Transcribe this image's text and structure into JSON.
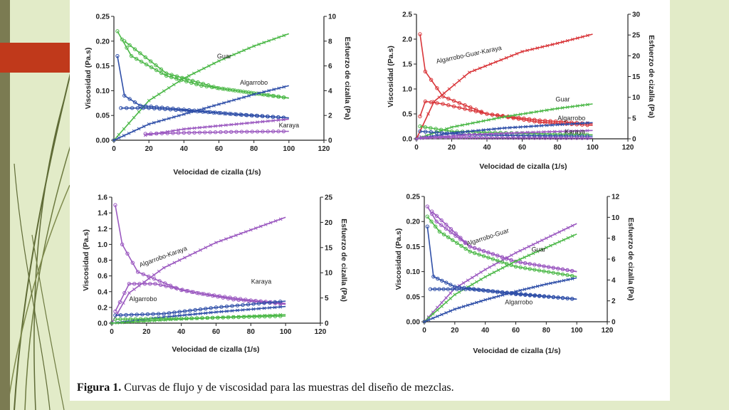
{
  "caption": {
    "label": "Figura 1.",
    "text": "Curvas de flujo y de viscosidad para las muestras del diseño de mezclas."
  },
  "colors": {
    "red": "#d9363a",
    "green": "#4cb848",
    "blue": "#2f4fa8",
    "purple": "#9b59c0",
    "accent": "#c0391b",
    "background": "#e2ebc8"
  },
  "chart_data": [
    {
      "type": "line",
      "xlabel": "Velocidad de cizalla (1/s)",
      "ylabel": "Viscosidad (Pa.s)",
      "y2label": "Esfuerzo de cizalla (Pa)",
      "xlim": [
        0,
        120
      ],
      "ylim": [
        0,
        0.25
      ],
      "y2lim": [
        0,
        10
      ],
      "xticks": [
        "0",
        "20",
        "40",
        "60",
        "80",
        "100",
        "120"
      ],
      "yticks": [
        "0.00",
        "0.05",
        "0.10",
        "0.15",
        "0.20",
        "0.25"
      ],
      "y2ticks": [
        "0",
        "2",
        "4",
        "6",
        "8",
        "10"
      ],
      "series": [
        {
          "name": "Guar",
          "color": "green",
          "viscosity_up": [
            [
              2,
              0.22
            ],
            [
              10,
              0.17
            ],
            [
              30,
              0.13
            ],
            [
              50,
              0.11
            ],
            [
              80,
              0.095
            ],
            [
              100,
              0.085
            ]
          ],
          "viscosity_down": [
            [
              6,
              0.2
            ],
            [
              30,
              0.135
            ],
            [
              60,
              0.105
            ],
            [
              100,
              0.085
            ]
          ],
          "stress": [
            [
              0,
              0
            ],
            [
              20,
              3.2
            ],
            [
              40,
              5.0
            ],
            [
              60,
              6.4
            ],
            [
              80,
              7.6
            ],
            [
              100,
              8.6
            ]
          ]
        },
        {
          "name": "Algarrobo",
          "color": "blue",
          "viscosity_up": [
            [
              2,
              0.17
            ],
            [
              6,
              0.09
            ],
            [
              15,
              0.07
            ],
            [
              40,
              0.062
            ],
            [
              70,
              0.052
            ],
            [
              100,
              0.045
            ]
          ],
          "viscosity_down": [
            [
              4,
              0.065
            ],
            [
              20,
              0.065
            ],
            [
              60,
              0.055
            ],
            [
              100,
              0.045
            ]
          ],
          "stress": [
            [
              0,
              0
            ],
            [
              20,
              1.3
            ],
            [
              40,
              2.1
            ],
            [
              60,
              2.9
            ],
            [
              80,
              3.7
            ],
            [
              100,
              4.4
            ]
          ]
        },
        {
          "name": "Karaya",
          "color": "purple",
          "viscosity_up": [
            [
              18,
              0.013
            ],
            [
              40,
              0.015
            ],
            [
              70,
              0.017
            ],
            [
              100,
              0.018
            ]
          ],
          "viscosity_down": [],
          "stress": [
            [
              18,
              0.4
            ],
            [
              40,
              0.9
            ],
            [
              70,
              1.3
            ],
            [
              100,
              1.7
            ]
          ]
        }
      ]
    },
    {
      "type": "line",
      "xlabel": "Velocidad de cizalla (1/s)",
      "ylabel": "Viscosidad (Pa.s)",
      "y2label": "Esfuerzo de cizalla (Pa)",
      "xlim": [
        0,
        120
      ],
      "ylim": [
        0,
        2.5
      ],
      "y2lim": [
        0,
        30
      ],
      "xticks": [
        "0",
        "20",
        "40",
        "60",
        "80",
        "100",
        "120"
      ],
      "yticks": [
        "0.0",
        "0.5",
        "1.0",
        "1.5",
        "2.0",
        "2.5"
      ],
      "y2ticks": [
        "0",
        "5",
        "10",
        "15",
        "20",
        "25",
        "30"
      ],
      "series": [
        {
          "name": "Algarrobo-Guar-Karaya",
          "color": "red",
          "viscosity_up": [
            [
              2,
              2.1
            ],
            [
              5,
              1.35
            ],
            [
              15,
              0.85
            ],
            [
              40,
              0.5
            ],
            [
              70,
              0.33
            ],
            [
              100,
              0.27
            ]
          ],
          "viscosity_down": [
            [
              2,
              0.45
            ],
            [
              5,
              0.75
            ],
            [
              15,
              0.7
            ],
            [
              40,
              0.5
            ],
            [
              70,
              0.37
            ],
            [
              100,
              0.3
            ]
          ],
          "stress": [
            [
              0,
              0
            ],
            [
              10,
              9
            ],
            [
              30,
              16
            ],
            [
              60,
              21
            ],
            [
              80,
              23
            ],
            [
              100,
              25.2
            ]
          ]
        },
        {
          "name": "Guar",
          "color": "green",
          "viscosity_up": [
            [
              2,
              0.25
            ],
            [
              20,
              0.15
            ],
            [
              60,
              0.11
            ],
            [
              100,
              0.08
            ]
          ],
          "viscosity_down": [],
          "stress": [
            [
              0,
              0
            ],
            [
              20,
              2.8
            ],
            [
              50,
              5.3
            ],
            [
              80,
              7.3
            ],
            [
              100,
              8.4
            ]
          ]
        },
        {
          "name": "Algarrobo",
          "color": "blue",
          "viscosity_up": [
            [
              2,
              0.15
            ],
            [
              30,
              0.08
            ],
            [
              70,
              0.06
            ],
            [
              100,
              0.05
            ]
          ],
          "viscosity_down": [],
          "stress": [
            [
              0,
              0
            ],
            [
              20,
              1.4
            ],
            [
              50,
              2.6
            ],
            [
              80,
              3.4
            ],
            [
              100,
              3.9
            ]
          ]
        },
        {
          "name": "Karaya",
          "color": "purple",
          "viscosity_up": [
            [
              2,
              0.03
            ],
            [
              40,
              0.02
            ],
            [
              100,
              0.015
            ]
          ],
          "viscosity_down": [],
          "stress": [
            [
              0,
              0
            ],
            [
              30,
              1.0
            ],
            [
              60,
              1.5
            ],
            [
              100,
              2.0
            ]
          ]
        }
      ]
    },
    {
      "type": "line",
      "xlabel": "Velocidad de cizalla (1/s)",
      "ylabel": "Viscosidad (Pa.s)",
      "y2label": "Esfuerzo de cizalla (Pa)",
      "xlim": [
        0,
        120
      ],
      "ylim": [
        0,
        1.6
      ],
      "y2lim": [
        0,
        25
      ],
      "xticks": [
        "0",
        "20",
        "40",
        "60",
        "80",
        "100",
        "120"
      ],
      "yticks": [
        "0.0",
        "0.2",
        "0.4",
        "0.6",
        "0.8",
        "1.0",
        "1.2",
        "1.4",
        "1.6"
      ],
      "y2ticks": [
        "0",
        "5",
        "10",
        "15",
        "20",
        "25"
      ],
      "series": [
        {
          "name": "Algarrobo-Karaya",
          "color": "purple",
          "viscosity_up": [
            [
              2,
              1.5
            ],
            [
              6,
              1.0
            ],
            [
              15,
              0.65
            ],
            [
              40,
              0.42
            ],
            [
              70,
              0.3
            ],
            [
              100,
              0.24
            ]
          ],
          "viscosity_down": [
            [
              2,
              0.15
            ],
            [
              10,
              0.5
            ],
            [
              25,
              0.5
            ],
            [
              50,
              0.38
            ],
            [
              80,
              0.29
            ],
            [
              100,
              0.25
            ]
          ],
          "stress": [
            [
              0,
              0
            ],
            [
              10,
              6
            ],
            [
              30,
              11
            ],
            [
              60,
              16
            ],
            [
              80,
              18.5
            ],
            [
              100,
              21
            ]
          ]
        },
        {
          "name": "Karaya",
          "color": "blue",
          "viscosity_up": [
            [
              2,
              0.1
            ],
            [
              30,
              0.12
            ],
            [
              60,
              0.2
            ],
            [
              100,
              0.28
            ]
          ],
          "viscosity_down": [],
          "stress": [
            [
              0,
              0
            ],
            [
              30,
              1.2
            ],
            [
              60,
              2.2
            ],
            [
              100,
              3.3
            ]
          ]
        },
        {
          "name": "Algarrobo",
          "color": "green",
          "viscosity_up": [
            [
              2,
              0.05
            ],
            [
              40,
              0.06
            ],
            [
              100,
              0.09
            ]
          ],
          "viscosity_down": [],
          "stress": [
            [
              0,
              0
            ],
            [
              40,
              0.8
            ],
            [
              100,
              1.7
            ]
          ]
        }
      ]
    },
    {
      "type": "line",
      "xlabel": "Velocidad de cizalla (1/s)",
      "ylabel": "Viscosidad (Pa.s)",
      "y2label": "Esfuerzo de cizalla (Pa)",
      "xlim": [
        0,
        120
      ],
      "ylim": [
        0,
        0.25
      ],
      "y2lim": [
        0,
        12
      ],
      "xticks": [
        "0",
        "20",
        "40",
        "60",
        "80",
        "100",
        "120"
      ],
      "yticks": [
        "0.00",
        "0.05",
        "0.10",
        "0.15",
        "0.20",
        "0.25"
      ],
      "y2ticks": [
        "0",
        "2",
        "4",
        "6",
        "8",
        "10",
        "12"
      ],
      "series": [
        {
          "name": "Algarrobo-Guar",
          "color": "purple",
          "viscosity_up": [
            [
              2,
              0.23
            ],
            [
              8,
              0.2
            ],
            [
              30,
              0.15
            ],
            [
              60,
              0.12
            ],
            [
              100,
              0.1
            ]
          ],
          "viscosity_down": [
            [
              5,
              0.22
            ],
            [
              30,
              0.15
            ],
            [
              60,
              0.12
            ],
            [
              100,
              0.1
            ]
          ],
          "stress": [
            [
              0,
              0
            ],
            [
              20,
              3.2
            ],
            [
              40,
              5.0
            ],
            [
              60,
              6.6
            ],
            [
              80,
              8.0
            ],
            [
              100,
              9.4
            ]
          ]
        },
        {
          "name": "Guar",
          "color": "green",
          "viscosity_up": [
            [
              2,
              0.21
            ],
            [
              10,
              0.18
            ],
            [
              30,
              0.14
            ],
            [
              60,
              0.11
            ],
            [
              100,
              0.09
            ]
          ],
          "viscosity_down": [],
          "stress": [
            [
              0,
              0
            ],
            [
              20,
              2.6
            ],
            [
              40,
              4.3
            ],
            [
              60,
              5.8
            ],
            [
              80,
              7.1
            ],
            [
              100,
              8.4
            ]
          ]
        },
        {
          "name": "Algarrobo",
          "color": "blue",
          "viscosity_up": [
            [
              2,
              0.19
            ],
            [
              6,
              0.09
            ],
            [
              20,
              0.07
            ],
            [
              60,
              0.055
            ],
            [
              100,
              0.045
            ]
          ],
          "viscosity_down": [
            [
              4,
              0.065
            ],
            [
              30,
              0.065
            ],
            [
              100,
              0.045
            ]
          ],
          "stress": [
            [
              0,
              0
            ],
            [
              20,
              1.2
            ],
            [
              40,
              2.1
            ],
            [
              60,
              2.9
            ],
            [
              80,
              3.6
            ],
            [
              100,
              4.2
            ]
          ]
        }
      ]
    }
  ]
}
